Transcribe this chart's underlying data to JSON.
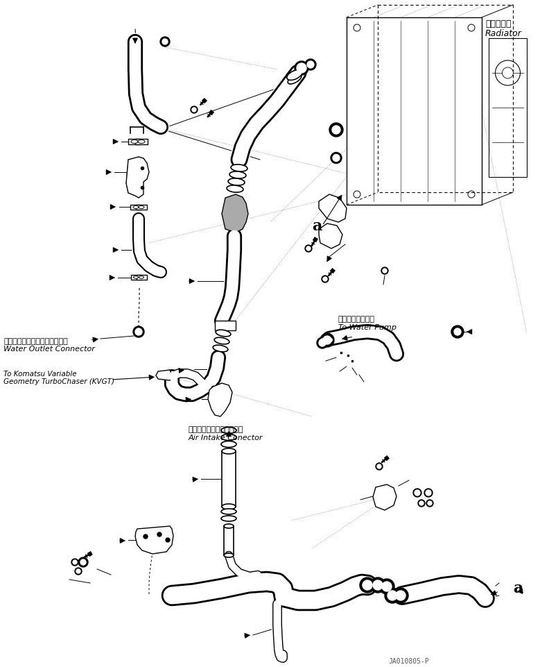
{
  "background_color": "#ffffff",
  "line_color": "#000000",
  "fig_width": 7.92,
  "fig_height": 9.61,
  "dpi": 100,
  "part_number": "JA010805-P",
  "labels": {
    "radiator_jp": "ラジエータ",
    "radiator_en": "Radiator",
    "water_outlet_jp": "ウォータアウトレットコネクタ",
    "water_outlet_en": "Water Outlet Connector",
    "water_pump_jp": "ウォータポンプへ",
    "water_pump_en": "To Water Pump",
    "kvgt_en1": "To Komatsu Variable",
    "kvgt_en2": "Geometry TurboChaser (KVGT)",
    "air_intake_jp": "エアーインテークコネクタ",
    "air_intake_en": "Air Intake Conector",
    "label_a1": "a",
    "label_a2": "a"
  }
}
